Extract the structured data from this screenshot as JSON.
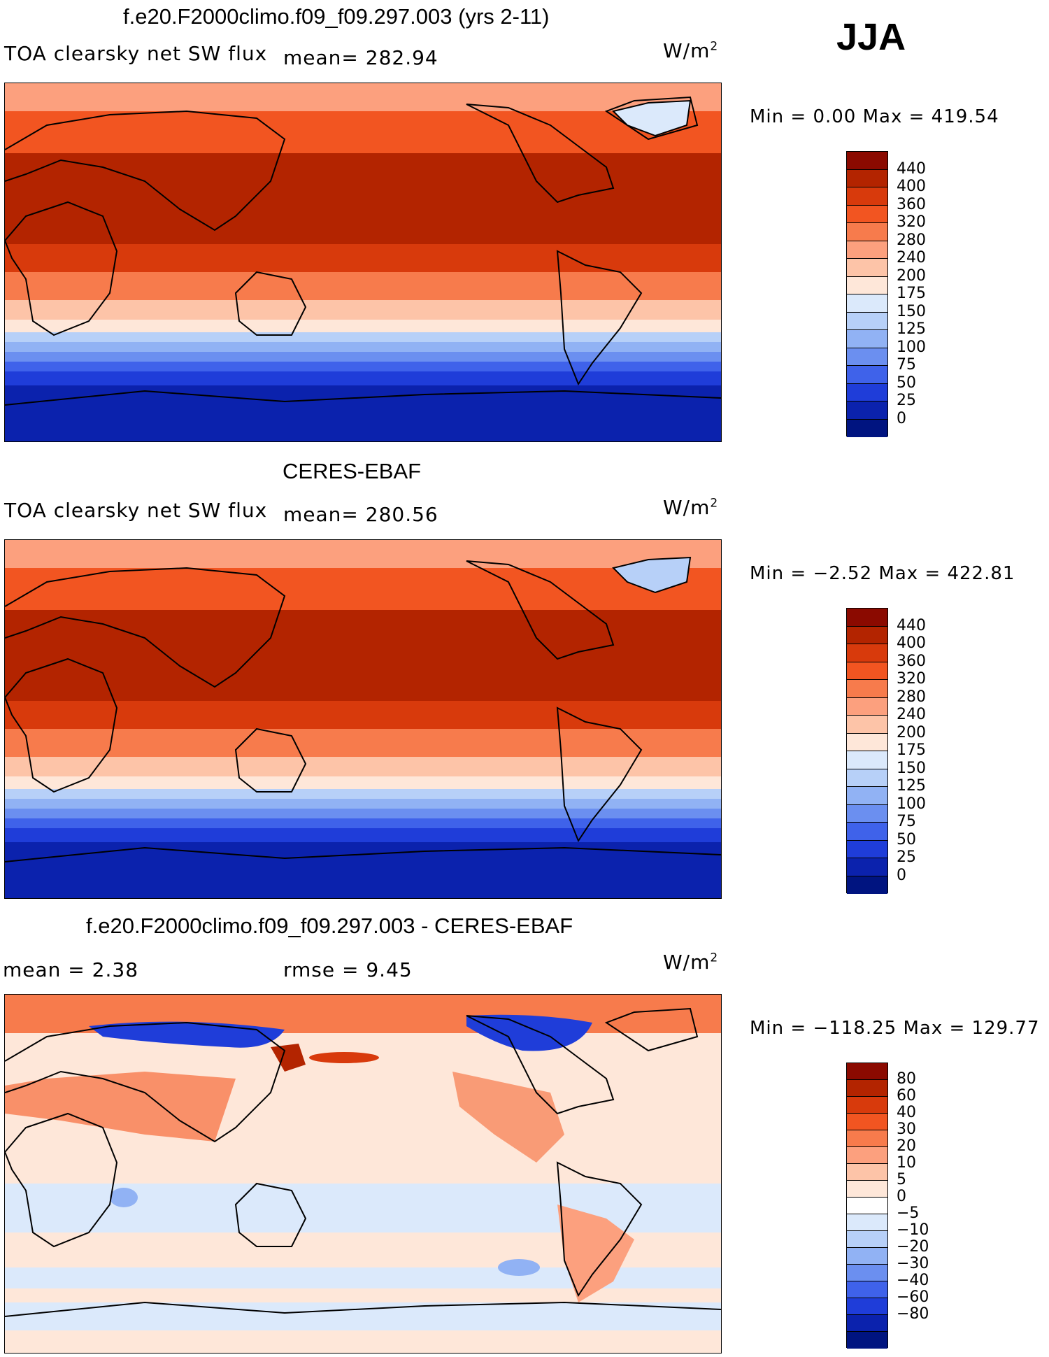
{
  "season": "JJA",
  "panels": [
    {
      "title": "f.e20.F2000climo.f09_f09.297.003 (yrs 2-11)",
      "variable": "TOA clearsky net SW flux",
      "mean_label": "mean= 282.94",
      "units": "W/m",
      "units_exp": "2",
      "minmax": "Min =    0.00 Max = 419.54",
      "colorbar": {
        "labels": [
          "440",
          "400",
          "360",
          "320",
          "280",
          "240",
          "200",
          "175",
          "150",
          "125",
          "100",
          "75",
          "50",
          "25",
          "0"
        ],
        "colors": [
          "#8b0a00",
          "#b32400",
          "#d83a0c",
          "#f25521",
          "#f77b4c",
          "#fca07e",
          "#fdc4a8",
          "#fee7d9",
          "#dbe9fb",
          "#b7d0f8",
          "#91b2f4",
          "#6b8ff0",
          "#3f62ea",
          "#1f3dd9",
          "#0b22ad",
          "#001480"
        ]
      }
    },
    {
      "title": "CERES-EBAF",
      "variable": "TOA clearsky net SW flux",
      "mean_label": "mean= 280.56",
      "units": "W/m",
      "units_exp": "2",
      "minmax": "Min =  −2.52 Max = 422.81",
      "colorbar": {
        "labels": [
          "440",
          "400",
          "360",
          "320",
          "280",
          "240",
          "200",
          "175",
          "150",
          "125",
          "100",
          "75",
          "50",
          "25",
          "0"
        ],
        "colors": [
          "#8b0a00",
          "#b32400",
          "#d83a0c",
          "#f25521",
          "#f77b4c",
          "#fca07e",
          "#fdc4a8",
          "#fee7d9",
          "#dbe9fb",
          "#b7d0f8",
          "#91b2f4",
          "#6b8ff0",
          "#3f62ea",
          "#1f3dd9",
          "#0b22ad",
          "#001480"
        ]
      }
    },
    {
      "title": "f.e20.F2000climo.f09_f09.297.003 - CERES-EBAF",
      "mean_label": "mean =     2.38",
      "rmse_label": "rmse =     9.45",
      "units": "W/m",
      "units_exp": "2",
      "minmax": "Min = −118.25 Max = 129.77",
      "colorbar": {
        "labels": [
          "80",
          "60",
          "40",
          "30",
          "20",
          "10",
          "5",
          "0",
          "−5",
          "−10",
          "−20",
          "−30",
          "−40",
          "−60",
          "−80"
        ],
        "colors": [
          "#8b0a00",
          "#b32400",
          "#d83a0c",
          "#f25521",
          "#f77b4c",
          "#fca07e",
          "#fdc4a8",
          "#fee7d9",
          "#ffffff",
          "#dbe9fb",
          "#b7d0f8",
          "#91b2f4",
          "#6b8ff0",
          "#3f62ea",
          "#1f3dd9",
          "#0b22ad",
          "#001480"
        ]
      }
    }
  ]
}
